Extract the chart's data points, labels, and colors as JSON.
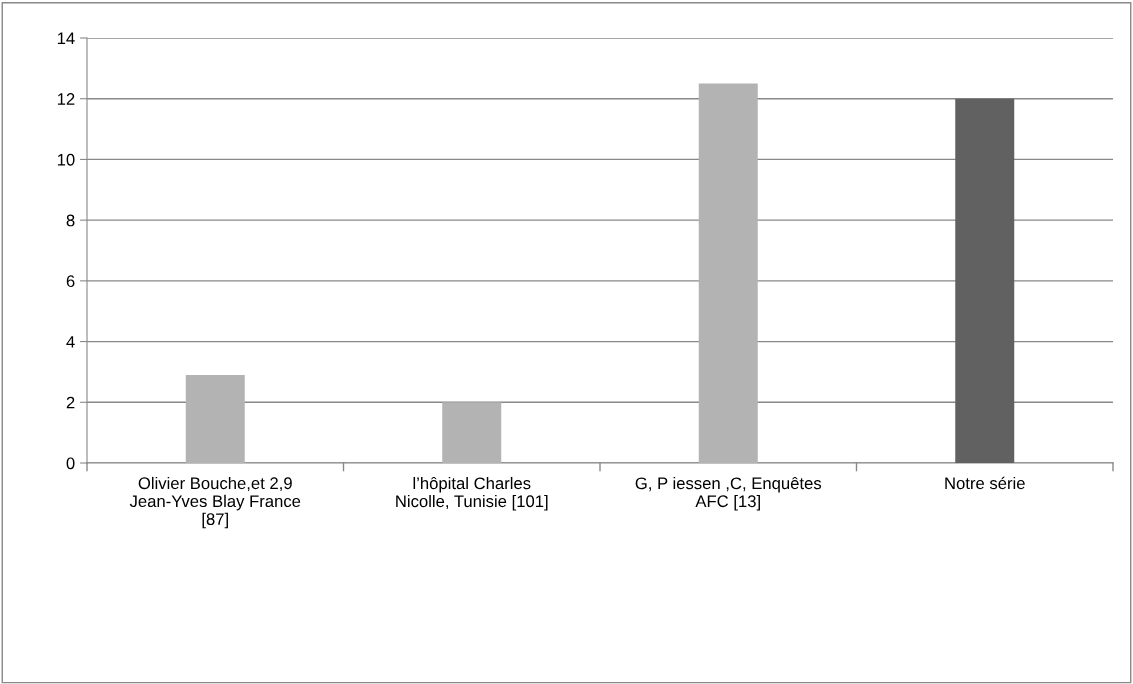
{
  "chart_data": {
    "type": "bar",
    "categories": [
      "Olivier Bouche,et 2,9\nJean-Yves Blay France\n[87]",
      "l’hôpital Charles\nNicolle, Tunisie [101]",
      "G, P iessen ,C, Enquêtes\nAFC [13]",
      "Notre série"
    ],
    "values": [
      2.9,
      2.0,
      12.5,
      12.0
    ],
    "colors": [
      "#b3b3b3",
      "#b3b3b3",
      "#b3b3b3",
      "#616161"
    ],
    "ylim": [
      0,
      14
    ],
    "yticks": [
      0,
      2,
      4,
      6,
      8,
      10,
      12,
      14
    ],
    "grid": "y",
    "legend": false
  }
}
